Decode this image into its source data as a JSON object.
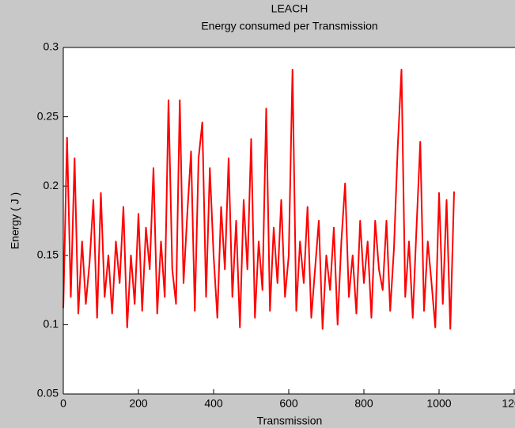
{
  "chart_data": {
    "type": "line",
    "title": "LEACH",
    "subtitle": "Energy consumed per Transmission",
    "x_label": "Transmission",
    "y_label": "Energy ( J )",
    "xlim": [
      0,
      1200
    ],
    "xticks": [
      0,
      200,
      400,
      600,
      800,
      1000,
      1200
    ],
    "ylim": [
      0.05,
      0.3
    ],
    "yticks": [
      0.05,
      0.1,
      0.15,
      0.2,
      0.25,
      0.3
    ],
    "x": [
      0,
      10,
      20,
      30,
      40,
      50,
      60,
      70,
      80,
      90,
      100,
      110,
      120,
      130,
      140,
      150,
      160,
      170,
      180,
      190,
      200,
      210,
      220,
      230,
      240,
      250,
      260,
      270,
      280,
      290,
      300,
      310,
      320,
      330,
      340,
      350,
      360,
      370,
      380,
      390,
      400,
      410,
      420,
      430,
      440,
      450,
      460,
      470,
      480,
      490,
      500,
      510,
      520,
      530,
      540,
      550,
      560,
      570,
      580,
      590,
      600,
      610,
      620,
      630,
      640,
      650,
      660,
      670,
      680,
      690,
      700,
      710,
      720,
      730,
      740,
      750,
      760,
      770,
      780,
      790,
      800,
      810,
      820,
      830,
      840,
      850,
      860,
      870,
      880,
      890,
      900,
      910,
      920,
      930,
      940,
      950,
      960,
      970,
      980,
      990,
      1000,
      1010,
      1020,
      1030,
      1040
    ],
    "series": [
      {
        "color": "#ff0000",
        "values": [
          0.112,
          0.235,
          0.12,
          0.22,
          0.108,
          0.16,
          0.115,
          0.145,
          0.19,
          0.105,
          0.195,
          0.12,
          0.15,
          0.108,
          0.16,
          0.13,
          0.185,
          0.098,
          0.15,
          0.115,
          0.18,
          0.11,
          0.17,
          0.14,
          0.213,
          0.108,
          0.16,
          0.12,
          0.262,
          0.14,
          0.115,
          0.262,
          0.13,
          0.18,
          0.225,
          0.11,
          0.22,
          0.246,
          0.12,
          0.213,
          0.15,
          0.105,
          0.185,
          0.14,
          0.22,
          0.12,
          0.175,
          0.098,
          0.19,
          0.14,
          0.234,
          0.105,
          0.16,
          0.125,
          0.256,
          0.11,
          0.17,
          0.13,
          0.19,
          0.12,
          0.15,
          0.284,
          0.11,
          0.16,
          0.13,
          0.185,
          0.105,
          0.14,
          0.175,
          0.097,
          0.15,
          0.125,
          0.17,
          0.1,
          0.16,
          0.202,
          0.12,
          0.15,
          0.108,
          0.175,
          0.13,
          0.16,
          0.105,
          0.175,
          0.14,
          0.125,
          0.175,
          0.11,
          0.155,
          0.228,
          0.284,
          0.12,
          0.16,
          0.105,
          0.17,
          0.232,
          0.11,
          0.16,
          0.13,
          0.098,
          0.195,
          0.115,
          0.19,
          0.097,
          0.196
        ]
      }
    ]
  }
}
